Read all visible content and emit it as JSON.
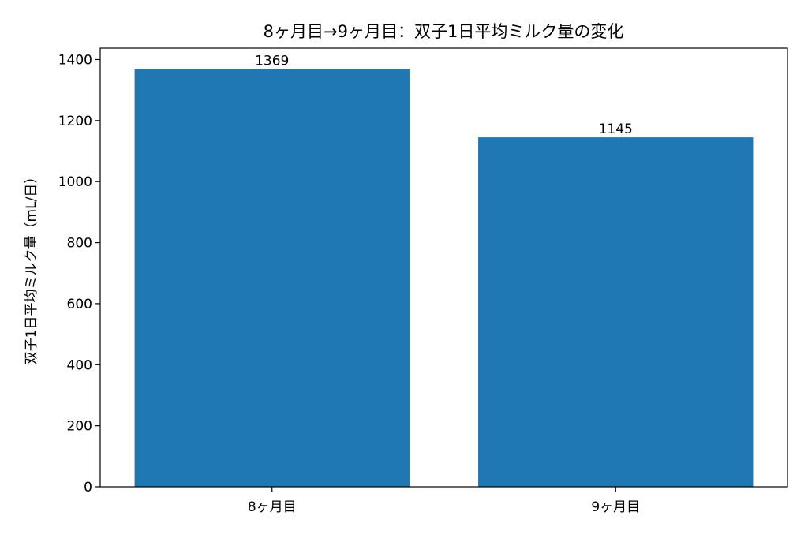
{
  "chart_data": {
    "type": "bar",
    "title": "8ヶ月目→9ヶ月目：双子1日平均ミルク量の変化",
    "xlabel": "",
    "ylabel": "双子1日平均ミルク量（mL/日）",
    "categories": [
      "8ヶ月目",
      "9ヶ月目"
    ],
    "values": [
      1369,
      1145
    ],
    "data_labels": [
      "1369",
      "1145"
    ],
    "ylim": [
      0,
      1437.45
    ],
    "yticks": [
      0,
      200,
      400,
      600,
      800,
      1000,
      1200,
      1400
    ],
    "ytick_labels": [
      "0",
      "200",
      "400",
      "600",
      "800",
      "1000",
      "1200",
      "1400"
    ],
    "grid": false,
    "bar_color": "#1f77b4"
  }
}
